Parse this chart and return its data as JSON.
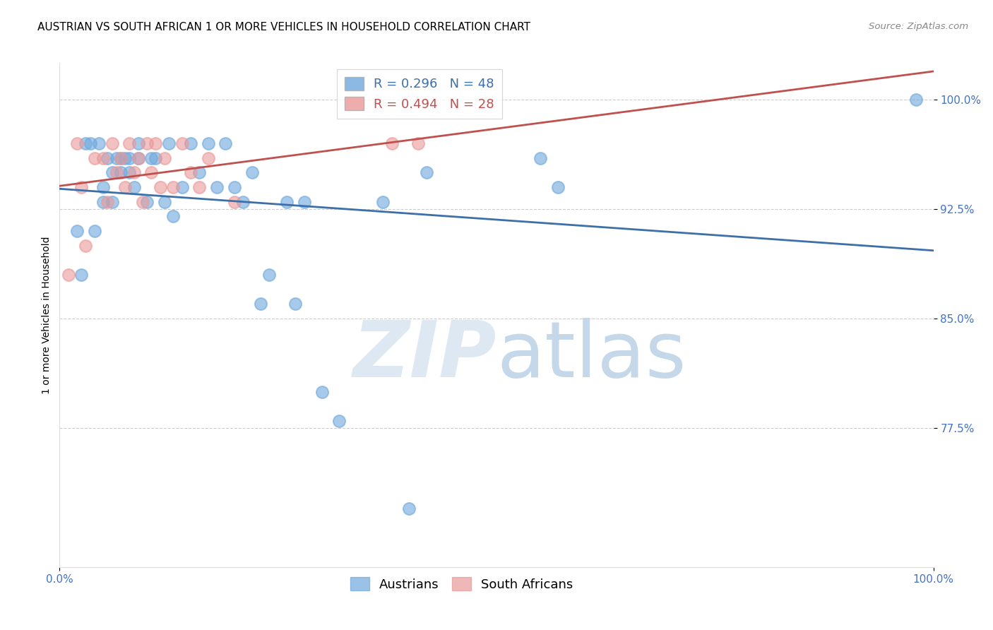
{
  "title": "AUSTRIAN VS SOUTH AFRICAN 1 OR MORE VEHICLES IN HOUSEHOLD CORRELATION CHART",
  "source": "Source: ZipAtlas.com",
  "ylabel": "1 or more Vehicles in Household",
  "legend_labels": [
    "Austrians",
    "South Africans"
  ],
  "r_austrians": 0.296,
  "n_austrians": 48,
  "r_south_africans": 0.494,
  "n_south_africans": 28,
  "austrian_color": "#6fa8dc",
  "south_african_color": "#ea9999",
  "austrian_line_color": "#3d6fa8",
  "south_african_line_color": "#c0504d",
  "watermark_zip_color": "#c8d8eb",
  "watermark_atlas_color": "#c8d8eb",
  "xlim": [
    0.0,
    100.0
  ],
  "ylim": [
    68.0,
    102.5
  ],
  "yticks": [
    77.5,
    85.0,
    92.5,
    100.0
  ],
  "ytick_labels": [
    "77.5%",
    "85.0%",
    "92.5%",
    "100.0%"
  ],
  "xtick_labels": [
    "0.0%",
    "100.0%"
  ],
  "austrian_x": [
    2.0,
    2.5,
    3.0,
    3.5,
    4.0,
    4.5,
    5.0,
    5.0,
    5.5,
    6.0,
    6.0,
    6.5,
    7.0,
    7.0,
    7.5,
    8.0,
    8.0,
    8.5,
    9.0,
    9.0,
    10.0,
    10.5,
    11.0,
    12.0,
    12.5,
    13.0,
    14.0,
    15.0,
    16.0,
    17.0,
    18.0,
    19.0,
    20.0,
    21.0,
    22.0,
    23.0,
    24.0,
    26.0,
    27.0,
    28.0,
    30.0,
    32.0,
    37.0,
    40.0,
    42.0,
    55.0,
    57.0,
    98.0
  ],
  "austrian_y": [
    91.0,
    88.0,
    97.0,
    97.0,
    91.0,
    97.0,
    94.0,
    93.0,
    96.0,
    95.0,
    93.0,
    96.0,
    95.0,
    96.0,
    96.0,
    95.0,
    96.0,
    94.0,
    97.0,
    96.0,
    93.0,
    96.0,
    96.0,
    93.0,
    97.0,
    92.0,
    94.0,
    97.0,
    95.0,
    97.0,
    94.0,
    97.0,
    94.0,
    93.0,
    95.0,
    86.0,
    88.0,
    93.0,
    86.0,
    93.0,
    80.0,
    78.0,
    93.0,
    72.0,
    95.0,
    96.0,
    94.0,
    100.0
  ],
  "south_african_x": [
    1.0,
    2.0,
    2.5,
    3.0,
    4.0,
    5.0,
    5.5,
    6.0,
    6.5,
    7.0,
    7.5,
    8.0,
    8.5,
    9.0,
    9.5,
    10.0,
    10.5,
    11.0,
    11.5,
    12.0,
    13.0,
    14.0,
    15.0,
    16.0,
    17.0,
    20.0,
    38.0,
    41.0
  ],
  "south_african_y": [
    88.0,
    97.0,
    94.0,
    90.0,
    96.0,
    96.0,
    93.0,
    97.0,
    95.0,
    96.0,
    94.0,
    97.0,
    95.0,
    96.0,
    93.0,
    97.0,
    95.0,
    97.0,
    94.0,
    96.0,
    94.0,
    97.0,
    95.0,
    94.0,
    96.0,
    93.0,
    97.0,
    97.0
  ],
  "title_fontsize": 11,
  "axis_label_fontsize": 10,
  "tick_fontsize": 11,
  "legend_fontsize": 13,
  "background_color": "#ffffff",
  "grid_color": "#cccccc",
  "tick_color": "#4472c4",
  "spine_color": "#dddddd"
}
